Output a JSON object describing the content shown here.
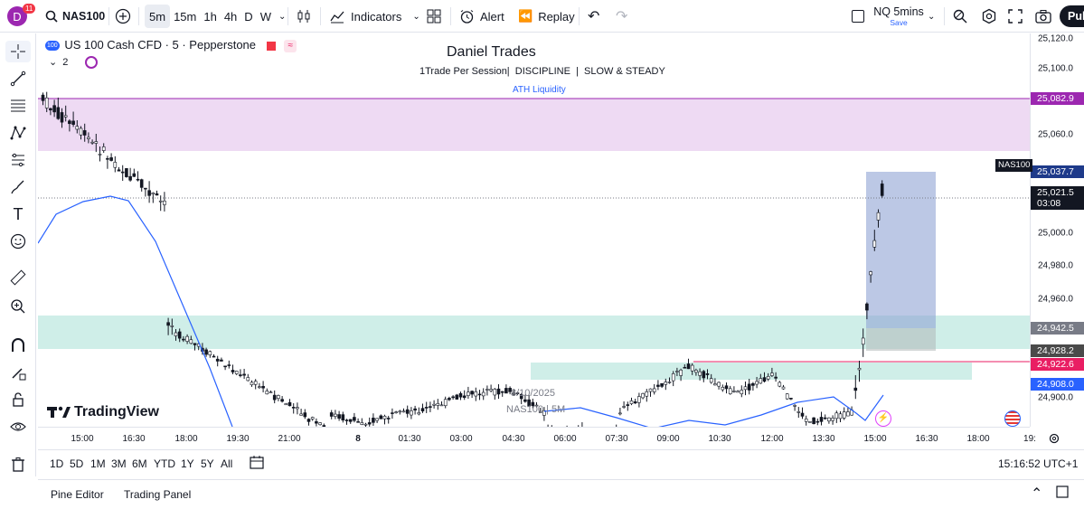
{
  "topbar": {
    "avatar_letter": "D",
    "notification_count": "11",
    "symbol": "NAS100",
    "timeframes": [
      "5m",
      "15m",
      "1h",
      "4h",
      "D",
      "W"
    ],
    "active_timeframe": "5m",
    "indicators_label": "Indicators",
    "alert_label": "Alert",
    "replay_label": "Replay",
    "layout_name": "NQ 5mins",
    "layout_status": "Save",
    "publish_label": "Pub"
  },
  "legend": {
    "instrument": "US 100 Cash CFD · 5 · Pepperstone",
    "badge": "100",
    "indicator_count": "2"
  },
  "chart_text": {
    "title": "Daniel Trades",
    "subtitle": "1Trade Per Session|  DISCIPLINE  |  SLOW & STEADY",
    "zone_label": "ATH Liquidity",
    "watermark_date": "8/10/2025",
    "watermark_symbol": "NAS100 | 5M",
    "logo": "TradingView"
  },
  "price_axis": {
    "labels": [
      "25,120.0",
      "25,100.0",
      "25,060.0",
      "25,000.0",
      "24,980.0",
      "24,960.0",
      "24,900.0"
    ],
    "tags": [
      {
        "value": "25,082.9",
        "color": "#9c27b0"
      },
      {
        "value": "25,037.7",
        "color": "#1e3a8a"
      },
      {
        "value": "24,942.5",
        "color": "#787b86"
      },
      {
        "value": "24,928.2",
        "color": "#4a4a4a"
      },
      {
        "value": "24,922.6",
        "color": "#e91e63"
      },
      {
        "value": "24,908.0",
        "color": "#2962ff"
      }
    ],
    "current_symbol": "NAS100",
    "current_price": "25,021.5",
    "countdown": "03:08"
  },
  "time_axis": [
    "15:00",
    "16:30",
    "18:00",
    "19:30",
    "21:00",
    "8",
    "01:30",
    "03:00",
    "04:30",
    "06:00",
    "07:30",
    "09:00",
    "10:30",
    "12:00",
    "13:30",
    "15:00",
    "16:30",
    "18:00",
    "19:"
  ],
  "range_bar": {
    "ranges": [
      "1D",
      "5D",
      "1M",
      "3M",
      "6M",
      "YTD",
      "1Y",
      "5Y",
      "All"
    ],
    "clock": "15:16:52 UTC+1"
  },
  "bottom_panel": {
    "tabs": [
      "Pine Editor",
      "Trading Panel"
    ]
  },
  "colors": {
    "bull": "#ffffff",
    "bear": "#131722",
    "ma_line": "#2962ff",
    "ath_zone": "#e1bee7",
    "demand_zone": "#b2dfdb",
    "position_box": "#90a4d4"
  }
}
